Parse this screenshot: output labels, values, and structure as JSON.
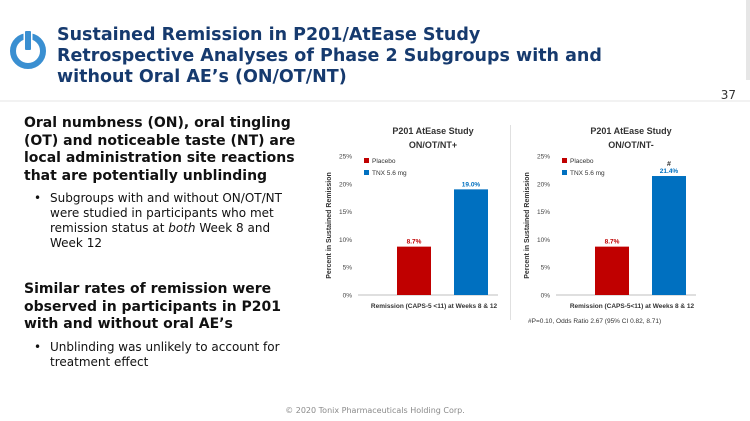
{
  "header": {
    "title_line1": "Sustained Remission in P201/AtEase Study",
    "title_line2": "Retrospective Analyses of Phase 2 Subgroups with and",
    "title_line3": "without Oral AE’s (ON/OT/NT)",
    "slide_number": "37",
    "logo_icon": "power-icon",
    "accent_color": "#3a8fd1"
  },
  "body": {
    "heading1": "Oral numbness (ON), oral tingling (OT) and noticeable taste (NT) are local administration site reactions that are potentially unblinding",
    "bullet1_part1": "Subgroups with and without ON/OT/NT were studied in participants who met remission status at ",
    "bullet1_em": "both",
    "bullet1_part2": " Week 8 and Week 12",
    "heading2": "Similar rates of remission were observed in participants in P201 with and without oral AE’s",
    "bullet2": "Unblinding was unlikely to account for treatment effect"
  },
  "chart_data": [
    {
      "type": "bar",
      "title": "P201 AtEase Study",
      "subtitle": "ON/OT/NT+",
      "categories": [
        "Remission (CAPS-5 <11) at Weeks 8 & 12"
      ],
      "series": [
        {
          "name": "Placebo",
          "values": [
            8.7
          ],
          "label": "8.7%",
          "color": "#c00000"
        },
        {
          "name": "TNX 5.6 mg",
          "values": [
            19.0
          ],
          "label": "19.0%",
          "color": "#0070c0"
        }
      ],
      "ylabel": "Percent in Sustained Remission",
      "ylim": [
        0,
        25
      ],
      "yticks": [
        "0%",
        "5%",
        "10%",
        "15%",
        "20%",
        "25%"
      ],
      "legend": "top-left",
      "grid": false,
      "annotation": ""
    },
    {
      "type": "bar",
      "title": "P201 AtEase Study",
      "subtitle": "ON/OT/NT-",
      "categories": [
        "Remission (CAPS-5<11) at Weeks 8 & 12"
      ],
      "series": [
        {
          "name": "Placebo",
          "values": [
            8.7
          ],
          "label": "8.7%",
          "color": "#c00000"
        },
        {
          "name": "TNX 5.6 mg",
          "values": [
            21.4
          ],
          "label": "21.4%",
          "color": "#0070c0"
        }
      ],
      "ylabel": "Percent in Sustained Remission",
      "ylim": [
        0,
        25
      ],
      "yticks": [
        "0%",
        "5%",
        "10%",
        "15%",
        "20%",
        "25%"
      ],
      "legend": "top-left",
      "grid": false,
      "annotation": "#"
    }
  ],
  "footnote": "#P=0.10, Odds Ratio 2.67 (95% CI 0.82, 8.71)",
  "footer": "© 2020 Tonix Pharmaceuticals Holding Corp."
}
